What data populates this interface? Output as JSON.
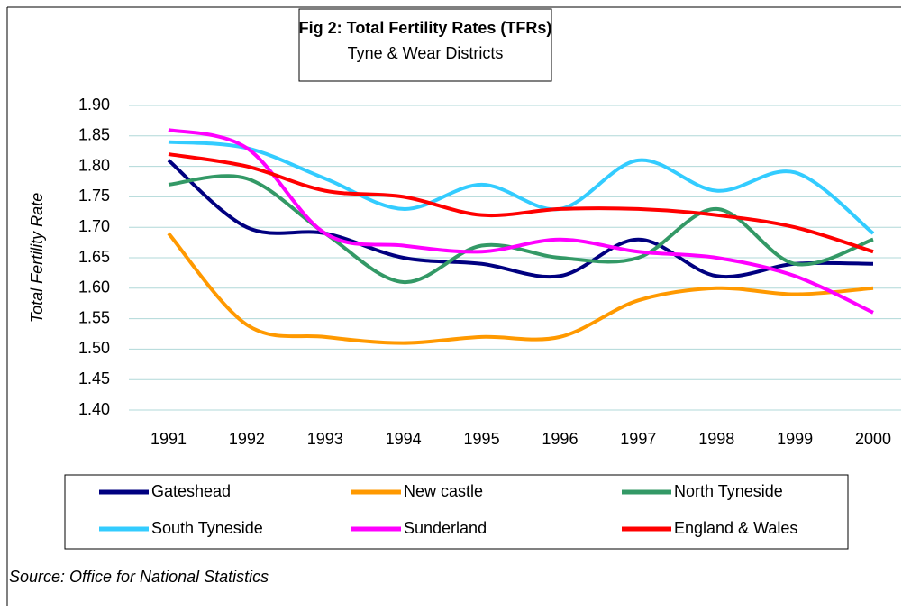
{
  "chart_data": {
    "type": "line",
    "title": "Fig 2: Total Fertility Rates (TFRs)",
    "subtitle": "Tyne & Wear Districts",
    "y_label": "Total Fertility Rate",
    "source": "Source: Office for National Statistics",
    "categories": [
      "1991",
      "1992",
      "1993",
      "1994",
      "1995",
      "1996",
      "1997",
      "1998",
      "1999",
      "2000"
    ],
    "series": [
      {
        "name": "Gateshead",
        "color": "#000080",
        "values": [
          1.81,
          1.7,
          1.69,
          1.65,
          1.64,
          1.62,
          1.68,
          1.62,
          1.64,
          1.64
        ]
      },
      {
        "name": "New castle",
        "color": "#ff9900",
        "values": [
          1.69,
          1.54,
          1.52,
          1.51,
          1.52,
          1.52,
          1.58,
          1.6,
          1.59,
          1.6
        ]
      },
      {
        "name": "North Tyneside",
        "color": "#339966",
        "values": [
          1.77,
          1.78,
          1.69,
          1.61,
          1.67,
          1.65,
          1.65,
          1.73,
          1.64,
          1.68
        ]
      },
      {
        "name": "South Tyneside",
        "color": "#33ccff",
        "values": [
          1.84,
          1.83,
          1.78,
          1.73,
          1.77,
          1.73,
          1.81,
          1.76,
          1.79,
          1.69
        ]
      },
      {
        "name": "Sunderland",
        "color": "#ff00ff",
        "values": [
          1.86,
          1.83,
          1.69,
          1.67,
          1.66,
          1.68,
          1.66,
          1.65,
          1.62,
          1.56
        ]
      },
      {
        "name": "England & Wales",
        "color": "#ff0000",
        "values": [
          1.82,
          1.8,
          1.76,
          1.75,
          1.72,
          1.73,
          1.73,
          1.72,
          1.7,
          1.66
        ]
      }
    ],
    "ylim": [
      1.4,
      1.9
    ],
    "yticks": [
      {
        "value": 1.4,
        "label": "1.40"
      },
      {
        "value": 1.45,
        "label": "1.45"
      },
      {
        "value": 1.5,
        "label": "1.50"
      },
      {
        "value": 1.55,
        "label": "1.55"
      },
      {
        "value": 1.6,
        "label": "1.60"
      },
      {
        "value": 1.65,
        "label": "1.65"
      },
      {
        "value": 1.7,
        "label": "1.70"
      },
      {
        "value": 1.75,
        "label": "1.75"
      },
      {
        "value": 1.8,
        "label": "1.80"
      },
      {
        "value": 1.85,
        "label": "1.85"
      },
      {
        "value": 1.9,
        "label": "1.90"
      }
    ],
    "grid": true
  }
}
